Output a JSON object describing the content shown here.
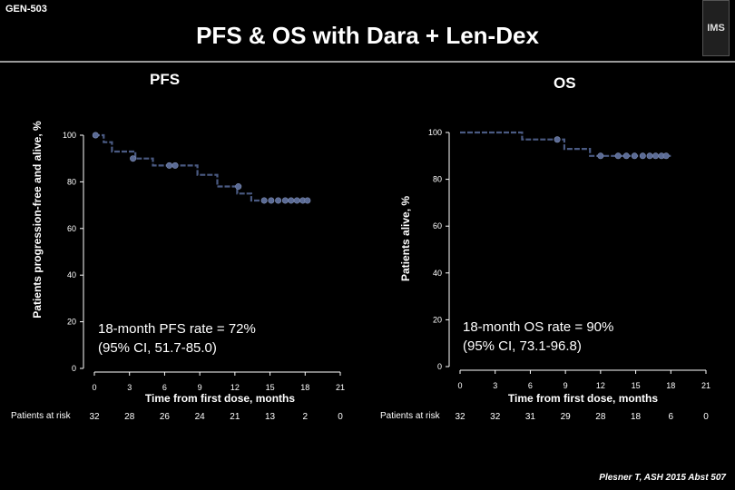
{
  "header": {
    "slide_id": "GEN-503",
    "title": "PFS & OS with Dara + Len-Dex",
    "logo_text": "IMS"
  },
  "footer": {
    "citation": "Plesner T, ASH 2015 Abst 507"
  },
  "chart_data": [
    {
      "type": "line",
      "title": "PFS",
      "xlabel": "Time from first dose, months",
      "ylabel": "Patients progression-free and alive, %",
      "xlim": [
        0,
        21
      ],
      "ylim": [
        0,
        100
      ],
      "xticks": [
        0,
        3,
        6,
        9,
        12,
        15,
        18,
        21
      ],
      "yticks": [
        0,
        20,
        40,
        60,
        80,
        100
      ],
      "annotation": [
        "18-month PFS rate = 72%",
        "(95% CI, 51.7-85.0)"
      ],
      "risk_label": "Patients at risk",
      "patients_at_risk": [
        32,
        28,
        26,
        24,
        21,
        13,
        2,
        0
      ],
      "step_x": [
        0,
        0.8,
        0.8,
        1.5,
        1.5,
        3.5,
        3.5,
        5.0,
        5.0,
        8.8,
        8.8,
        10.5,
        10.5,
        12.2,
        12.2,
        13.4,
        13.4,
        15.4
      ],
      "step_y": [
        100,
        100,
        97,
        97,
        93,
        93,
        90,
        90,
        87,
        87,
        83,
        83,
        78,
        78,
        75,
        75,
        72,
        72
      ],
      "censor_x": [
        0.1,
        3.3,
        6.4,
        6.9,
        12.3,
        14.5,
        15.1,
        15.7,
        16.3,
        16.8,
        17.3,
        17.8,
        18.2
      ],
      "censor_y": [
        100,
        90,
        87,
        87,
        78,
        72,
        72,
        72,
        72,
        72,
        72,
        72,
        72
      ]
    },
    {
      "type": "line",
      "title": "OS",
      "xlabel": "Time from first dose, months",
      "ylabel": "Patients alive, %",
      "xlim": [
        0,
        21
      ],
      "ylim": [
        0,
        100
      ],
      "xticks": [
        0,
        3,
        6,
        9,
        12,
        15,
        18,
        21
      ],
      "yticks": [
        0,
        20,
        40,
        60,
        80,
        100
      ],
      "annotation": [
        "18-month OS rate = 90%",
        "(95% CI, 73.1-96.8)"
      ],
      "risk_label": "Patients at risk",
      "patients_at_risk": [
        32,
        32,
        31,
        29,
        28,
        18,
        6,
        0
      ],
      "step_x": [
        0,
        5.3,
        5.3,
        8.9,
        8.9,
        11.1,
        11.1,
        18.0
      ],
      "step_y": [
        100,
        100,
        97,
        97,
        93,
        93,
        90,
        90
      ],
      "censor_x": [
        8.3,
        12.0,
        13.5,
        14.2,
        14.9,
        15.6,
        16.2,
        16.7,
        17.2,
        17.6
      ],
      "censor_y": [
        97,
        90,
        90,
        90,
        90,
        90,
        90,
        90,
        90,
        90
      ]
    }
  ]
}
